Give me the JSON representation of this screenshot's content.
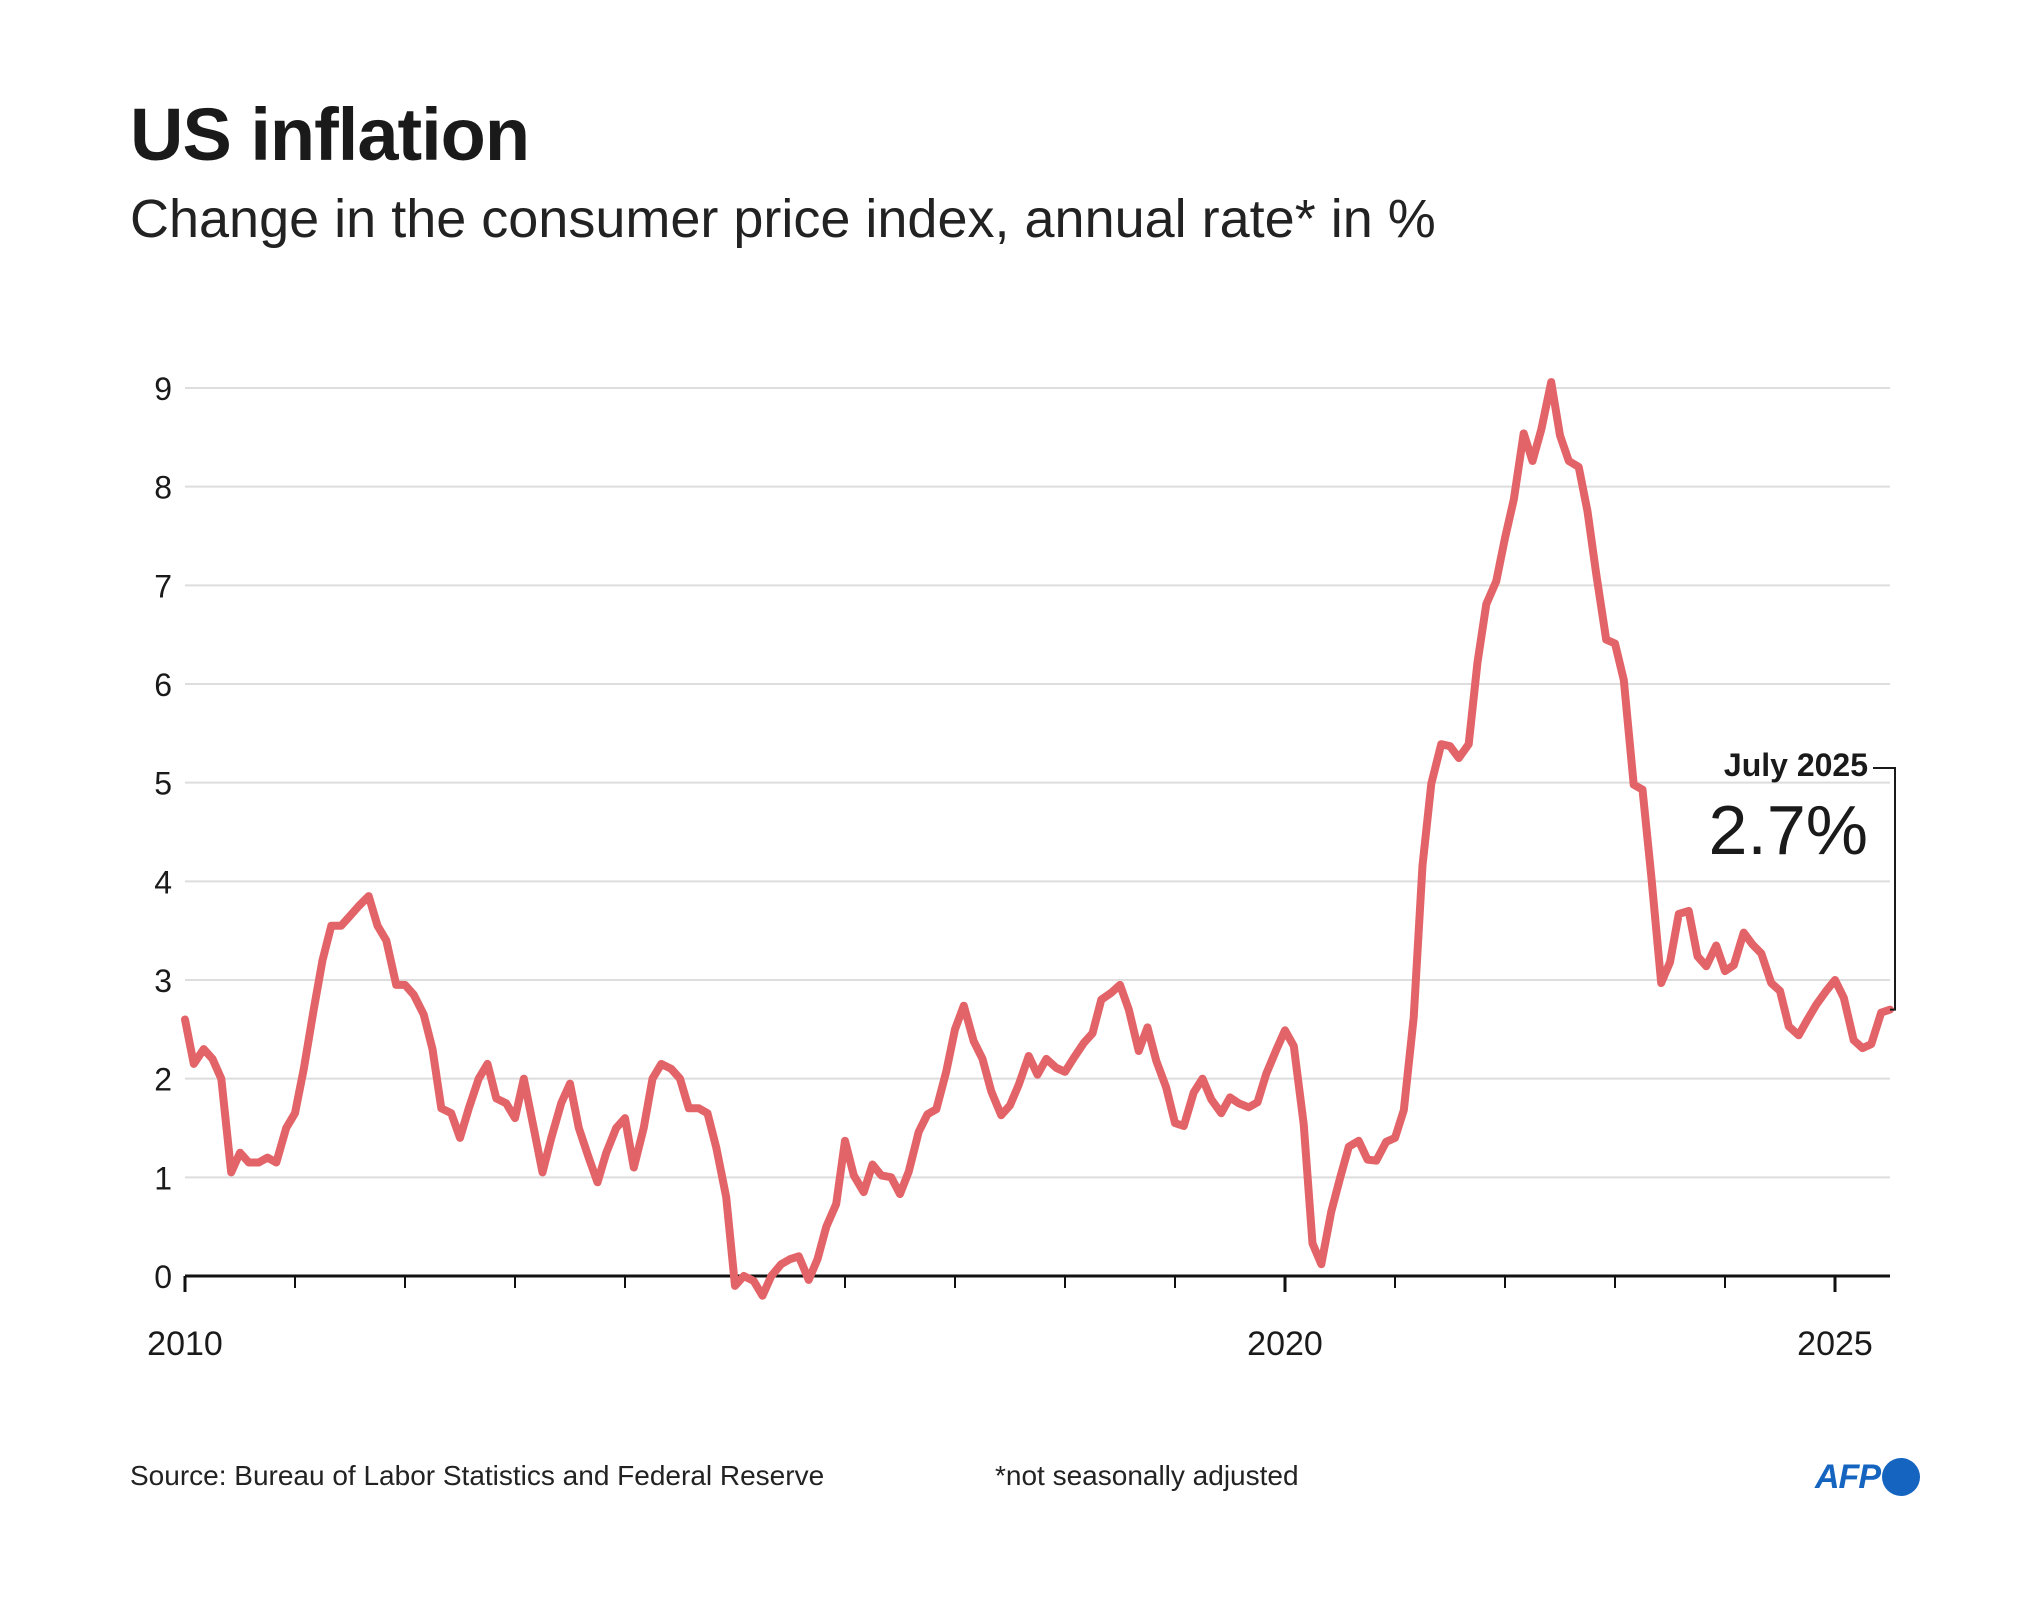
{
  "title": "US inflation",
  "subtitle": "Change in the consumer price index, annual rate* in %",
  "source": "Source: Bureau of Labor Statistics and Federal Reserve",
  "note": "*not seasonally adjusted",
  "logo": {
    "text": "AFP"
  },
  "colors": {
    "line": "#e36468",
    "grid": "#dddddd",
    "axis": "#111111",
    "logo": "#1565c0"
  },
  "chart_data": {
    "type": "line",
    "title": "US inflation",
    "subtitle": "Change in the consumer price index, annual rate* in %",
    "xlabel": "",
    "ylabel": "",
    "ylim": [
      0,
      9
    ],
    "xlim": [
      2010.0,
      2025.5
    ],
    "y_ticks": [
      0,
      1,
      2,
      3,
      4,
      5,
      6,
      7,
      8,
      9
    ],
    "x_tick_labels": [
      {
        "x": 2010,
        "label": "2010"
      },
      {
        "x": 2020,
        "label": "2020"
      },
      {
        "x": 2025,
        "label": "2025"
      }
    ],
    "grid": true,
    "annotation": {
      "period": "July 2025",
      "value_label": "2.7%",
      "x": 2025.5,
      "y": 2.7
    },
    "series": [
      {
        "values": [
          [
            2010.0,
            2.6
          ],
          [
            2010.08,
            2.15
          ],
          [
            2010.17,
            2.3
          ],
          [
            2010.25,
            2.2
          ],
          [
            2010.33,
            2.0
          ],
          [
            2010.42,
            1.05
          ],
          [
            2010.5,
            1.25
          ],
          [
            2010.58,
            1.15
          ],
          [
            2010.67,
            1.15
          ],
          [
            2010.75,
            1.2
          ],
          [
            2010.83,
            1.15
          ],
          [
            2010.92,
            1.5
          ],
          [
            2011.0,
            1.65
          ],
          [
            2011.08,
            2.1
          ],
          [
            2011.17,
            2.7
          ],
          [
            2011.25,
            3.2
          ],
          [
            2011.33,
            3.55
          ],
          [
            2011.42,
            3.55
          ],
          [
            2011.5,
            3.65
          ],
          [
            2011.58,
            3.75
          ],
          [
            2011.67,
            3.85
          ],
          [
            2011.75,
            3.55
          ],
          [
            2011.83,
            3.4
          ],
          [
            2011.92,
            2.95
          ],
          [
            2012.0,
            2.95
          ],
          [
            2012.08,
            2.85
          ],
          [
            2012.17,
            2.65
          ],
          [
            2012.25,
            2.3
          ],
          [
            2012.33,
            1.7
          ],
          [
            2012.42,
            1.65
          ],
          [
            2012.5,
            1.4
          ],
          [
            2012.58,
            1.7
          ],
          [
            2012.67,
            2.0
          ],
          [
            2012.75,
            2.15
          ],
          [
            2012.83,
            1.8
          ],
          [
            2012.92,
            1.75
          ],
          [
            2013.0,
            1.6
          ],
          [
            2013.08,
            2.0
          ],
          [
            2013.17,
            1.5
          ],
          [
            2013.25,
            1.05
          ],
          [
            2013.33,
            1.4
          ],
          [
            2013.42,
            1.75
          ],
          [
            2013.5,
            1.95
          ],
          [
            2013.58,
            1.5
          ],
          [
            2013.67,
            1.2
          ],
          [
            2013.75,
            0.95
          ],
          [
            2013.83,
            1.25
          ],
          [
            2013.92,
            1.5
          ],
          [
            2014.0,
            1.6
          ],
          [
            2014.08,
            1.1
          ],
          [
            2014.17,
            1.5
          ],
          [
            2014.25,
            2.0
          ],
          [
            2014.33,
            2.15
          ],
          [
            2014.42,
            2.1
          ],
          [
            2014.5,
            2.0
          ],
          [
            2014.58,
            1.7
          ],
          [
            2014.67,
            1.7
          ],
          [
            2014.75,
            1.65
          ],
          [
            2014.83,
            1.3
          ],
          [
            2014.92,
            0.8
          ],
          [
            2015.0,
            -0.1
          ],
          [
            2015.08,
            0.0
          ],
          [
            2015.17,
            -0.05
          ],
          [
            2015.25,
            -0.2
          ],
          [
            2015.33,
            0.0
          ],
          [
            2015.42,
            0.12
          ],
          [
            2015.5,
            0.17
          ],
          [
            2015.58,
            0.2
          ],
          [
            2015.67,
            -0.04
          ],
          [
            2015.75,
            0.17
          ],
          [
            2015.83,
            0.5
          ],
          [
            2015.92,
            0.73
          ],
          [
            2016.0,
            1.37
          ],
          [
            2016.08,
            1.02
          ],
          [
            2016.17,
            0.85
          ],
          [
            2016.25,
            1.13
          ],
          [
            2016.33,
            1.02
          ],
          [
            2016.42,
            1.0
          ],
          [
            2016.5,
            0.83
          ],
          [
            2016.58,
            1.06
          ],
          [
            2016.67,
            1.46
          ],
          [
            2016.75,
            1.64
          ],
          [
            2016.83,
            1.69
          ],
          [
            2016.92,
            2.07
          ],
          [
            2017.0,
            2.5
          ],
          [
            2017.08,
            2.74
          ],
          [
            2017.17,
            2.38
          ],
          [
            2017.25,
            2.2
          ],
          [
            2017.33,
            1.87
          ],
          [
            2017.42,
            1.63
          ],
          [
            2017.5,
            1.73
          ],
          [
            2017.58,
            1.94
          ],
          [
            2017.67,
            2.23
          ],
          [
            2017.75,
            2.04
          ],
          [
            2017.83,
            2.2
          ],
          [
            2017.92,
            2.11
          ],
          [
            2018.0,
            2.07
          ],
          [
            2018.08,
            2.21
          ],
          [
            2018.17,
            2.36
          ],
          [
            2018.25,
            2.46
          ],
          [
            2018.33,
            2.8
          ],
          [
            2018.42,
            2.87
          ],
          [
            2018.5,
            2.95
          ],
          [
            2018.58,
            2.7
          ],
          [
            2018.67,
            2.28
          ],
          [
            2018.75,
            2.52
          ],
          [
            2018.83,
            2.18
          ],
          [
            2018.92,
            1.91
          ],
          [
            2019.0,
            1.55
          ],
          [
            2019.08,
            1.52
          ],
          [
            2019.17,
            1.86
          ],
          [
            2019.25,
            2.0
          ],
          [
            2019.33,
            1.79
          ],
          [
            2019.42,
            1.65
          ],
          [
            2019.5,
            1.81
          ],
          [
            2019.58,
            1.75
          ],
          [
            2019.67,
            1.71
          ],
          [
            2019.75,
            1.76
          ],
          [
            2019.83,
            2.05
          ],
          [
            2019.92,
            2.29
          ],
          [
            2020.0,
            2.49
          ],
          [
            2020.08,
            2.33
          ],
          [
            2020.17,
            1.54
          ],
          [
            2020.25,
            0.33
          ],
          [
            2020.33,
            0.12
          ],
          [
            2020.42,
            0.65
          ],
          [
            2020.5,
            0.99
          ],
          [
            2020.58,
            1.31
          ],
          [
            2020.67,
            1.37
          ],
          [
            2020.75,
            1.18
          ],
          [
            2020.83,
            1.17
          ],
          [
            2020.92,
            1.36
          ],
          [
            2021.0,
            1.4
          ],
          [
            2021.08,
            1.68
          ],
          [
            2021.17,
            2.62
          ],
          [
            2021.25,
            4.16
          ],
          [
            2021.33,
            4.99
          ],
          [
            2021.42,
            5.39
          ],
          [
            2021.5,
            5.37
          ],
          [
            2021.58,
            5.25
          ],
          [
            2021.67,
            5.39
          ],
          [
            2021.75,
            6.22
          ],
          [
            2021.83,
            6.81
          ],
          [
            2021.92,
            7.04
          ],
          [
            2022.0,
            7.48
          ],
          [
            2022.08,
            7.87
          ],
          [
            2022.17,
            8.54
          ],
          [
            2022.25,
            8.26
          ],
          [
            2022.33,
            8.58
          ],
          [
            2022.42,
            9.06
          ],
          [
            2022.5,
            8.52
          ],
          [
            2022.58,
            8.26
          ],
          [
            2022.67,
            8.2
          ],
          [
            2022.75,
            7.75
          ],
          [
            2022.83,
            7.11
          ],
          [
            2022.92,
            6.45
          ],
          [
            2023.0,
            6.41
          ],
          [
            2023.08,
            6.04
          ],
          [
            2023.17,
            4.98
          ],
          [
            2023.25,
            4.93
          ],
          [
            2023.33,
            4.05
          ],
          [
            2023.42,
            2.97
          ],
          [
            2023.5,
            3.18
          ],
          [
            2023.58,
            3.67
          ],
          [
            2023.67,
            3.7
          ],
          [
            2023.75,
            3.24
          ],
          [
            2023.83,
            3.14
          ],
          [
            2023.92,
            3.35
          ],
          [
            2024.0,
            3.09
          ],
          [
            2024.08,
            3.15
          ],
          [
            2024.17,
            3.48
          ],
          [
            2024.25,
            3.36
          ],
          [
            2024.33,
            3.27
          ],
          [
            2024.42,
            2.97
          ],
          [
            2024.5,
            2.89
          ],
          [
            2024.58,
            2.53
          ],
          [
            2024.67,
            2.44
          ],
          [
            2024.75,
            2.6
          ],
          [
            2024.83,
            2.75
          ],
          [
            2024.92,
            2.89
          ],
          [
            2025.0,
            3.0
          ],
          [
            2025.08,
            2.82
          ],
          [
            2025.17,
            2.39
          ],
          [
            2025.25,
            2.31
          ],
          [
            2025.33,
            2.35
          ],
          [
            2025.42,
            2.67
          ],
          [
            2025.5,
            2.7
          ]
        ]
      }
    ]
  }
}
